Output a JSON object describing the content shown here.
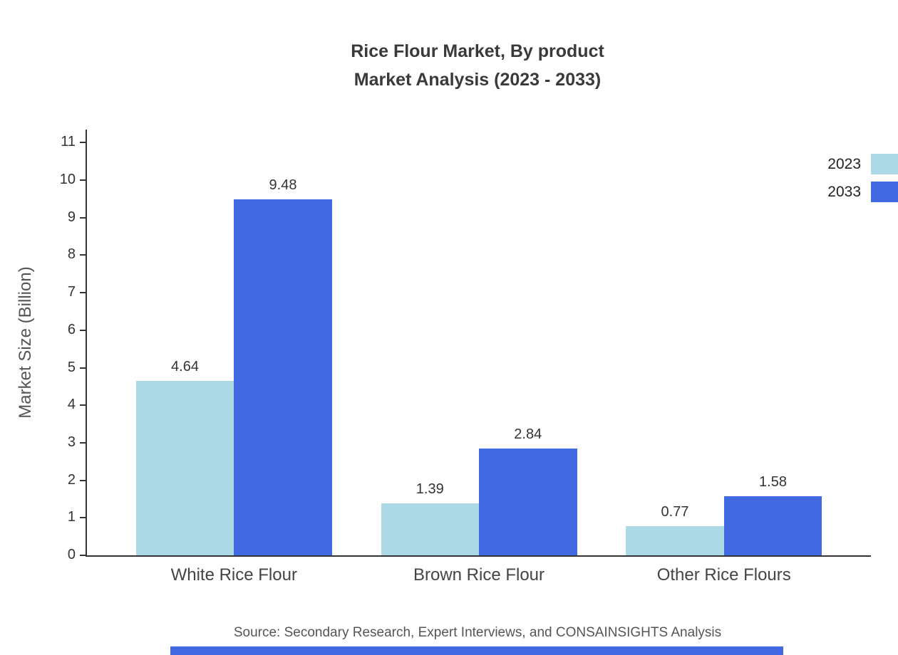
{
  "title": {
    "line1": "Rice Flour Market, By product",
    "line2": "Market Analysis (2023 - 2033)"
  },
  "chart_data": {
    "type": "bar",
    "categories": [
      "White Rice Flour",
      "Brown Rice Flour",
      "Other Rice Flours"
    ],
    "series": [
      {
        "name": "2023",
        "color": "#add8e6",
        "values": [
          4.64,
          1.39,
          0.77
        ]
      },
      {
        "name": "2033",
        "color": "#4169e1",
        "values": [
          9.48,
          2.84,
          1.58
        ]
      }
    ],
    "title": "Rice Flour Market, By product Market Analysis (2023 - 2033)",
    "xlabel": "",
    "ylabel": "Market Size (Billion)",
    "ylim": [
      0,
      11
    ],
    "yticks": [
      0,
      1,
      2,
      3,
      4,
      5,
      6,
      7,
      8,
      9,
      10,
      11
    ],
    "grid": false,
    "legend_position": "top-right",
    "axis_color": "#333333"
  },
  "source": "Source: Secondary Research, Expert Interviews, and CONSAINSIGHTS Analysis",
  "footer": {
    "accent_color": "#4169e1"
  }
}
